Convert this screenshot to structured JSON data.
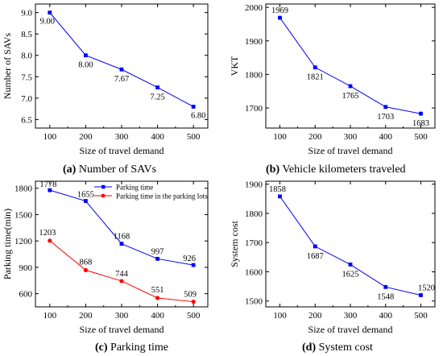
{
  "chart_data": [
    {
      "type": "line",
      "caption_letter": "(a)",
      "caption_text": "Number of SAVs",
      "xlabel": "Size of travel demand",
      "ylabel": "Number of SAVs",
      "x": [
        100,
        200,
        300,
        400,
        500
      ],
      "xlim": [
        60,
        540
      ],
      "ylim": [
        6.3,
        9.2
      ],
      "yticks": [
        6.5,
        7.0,
        7.5,
        8.0,
        8.5,
        9.0
      ],
      "ytick_labels": [
        "6.5",
        "7.0",
        "7.5",
        "8.0",
        "8.5",
        "9.0"
      ],
      "series": [
        {
          "values": [
            9.0,
            8.0,
            7.67,
            7.25,
            6.8
          ],
          "labels": [
            "9.00",
            "8.00",
            "7.67",
            "7.25",
            "6.80"
          ],
          "color": "#0000ff",
          "marker": "square"
        }
      ]
    },
    {
      "type": "line",
      "caption_letter": "(b)",
      "caption_text": "Vehicle kilometers traveled",
      "xlabel": "Size of travel demand",
      "ylabel": "VKT",
      "x": [
        100,
        200,
        300,
        400,
        500
      ],
      "xlim": [
        60,
        540
      ],
      "ylim": [
        1640,
        2010
      ],
      "yticks": [
        1700,
        1800,
        1900,
        2000
      ],
      "ytick_labels": [
        "1700",
        "1800",
        "1900",
        "2000"
      ],
      "series": [
        {
          "values": [
            1969,
            1821,
            1765,
            1703,
            1683
          ],
          "labels": [
            "1969",
            "1821",
            "1765",
            "1703",
            "1683"
          ],
          "color": "#0000ff",
          "marker": "square"
        }
      ]
    },
    {
      "type": "line",
      "caption_letter": "(c)",
      "caption_text": "Parking time",
      "xlabel": "Size of travel demand",
      "ylabel": "Parking time(min)",
      "x": [
        100,
        200,
        300,
        400,
        500
      ],
      "xlim": [
        60,
        540
      ],
      "ylim": [
        450,
        1880
      ],
      "yticks": [
        600,
        900,
        1200,
        1500,
        1800
      ],
      "ytick_labels": [
        "600",
        "900",
        "1200",
        "1500",
        "1800"
      ],
      "legend": "top-right",
      "series": [
        {
          "name": "Parking time",
          "values": [
            1778,
            1655,
            1168,
            997,
            926
          ],
          "labels": [
            "1778",
            "1655",
            "1168",
            "997",
            "926"
          ],
          "color": "#0000ff",
          "marker": "square"
        },
        {
          "name": "Parking time in the parking lots",
          "values": [
            1203,
            868,
            744,
            551,
            509
          ],
          "labels": [
            "1203",
            "868",
            "744",
            "551",
            "509"
          ],
          "color": "#ff0000",
          "marker": "circle"
        }
      ]
    },
    {
      "type": "line",
      "caption_letter": "(d)",
      "caption_text": "System cost",
      "xlabel": "Size of travel demand",
      "ylabel": "System cost",
      "x": [
        100,
        200,
        300,
        400,
        500
      ],
      "xlim": [
        60,
        540
      ],
      "ylim": [
        1480,
        1910
      ],
      "yticks": [
        1500,
        1600,
        1700,
        1800,
        1900
      ],
      "ytick_labels": [
        "1500",
        "1600",
        "1700",
        "1800",
        "1900"
      ],
      "series": [
        {
          "values": [
            1858,
            1687,
            1625,
            1548,
            1520
          ],
          "labels": [
            "1858",
            "1687",
            "1625",
            "1548",
            "1520"
          ],
          "color": "#0000ff",
          "marker": "square"
        }
      ]
    }
  ]
}
